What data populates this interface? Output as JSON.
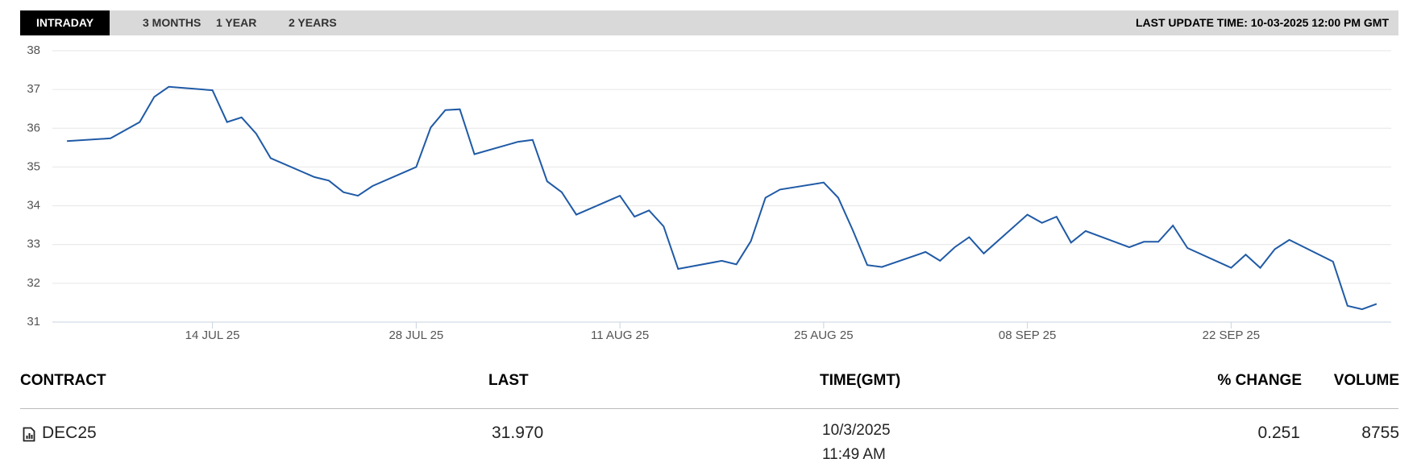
{
  "tabs": [
    "INTRADAY",
    "3 MONTHS",
    "1 YEAR",
    "2 YEARS"
  ],
  "last_update": "LAST UPDATE TIME: 10-03-2025 12:00 PM GMT",
  "chart_data": {
    "type": "line",
    "color": "#1f5aa6",
    "grid": true,
    "x": [
      "2025-07-04",
      "2025-07-07",
      "2025-07-09",
      "2025-07-10",
      "2025-07-11",
      "2025-07-14",
      "2025-07-15",
      "2025-07-16",
      "2025-07-17",
      "2025-07-18",
      "2025-07-21",
      "2025-07-22",
      "2025-07-23",
      "2025-07-24",
      "2025-07-25",
      "2025-07-28",
      "2025-07-29",
      "2025-07-30",
      "2025-07-31",
      "2025-08-01",
      "2025-08-04",
      "2025-08-05",
      "2025-08-06",
      "2025-08-07",
      "2025-08-08",
      "2025-08-11",
      "2025-08-12",
      "2025-08-13",
      "2025-08-14",
      "2025-08-15",
      "2025-08-18",
      "2025-08-19",
      "2025-08-20",
      "2025-08-21",
      "2025-08-22",
      "2025-08-25",
      "2025-08-26",
      "2025-08-27",
      "2025-08-28",
      "2025-08-29",
      "2025-09-01",
      "2025-09-02",
      "2025-09-03",
      "2025-09-04",
      "2025-09-05",
      "2025-09-08",
      "2025-09-09",
      "2025-09-10",
      "2025-09-11",
      "2025-09-12",
      "2025-09-15",
      "2025-09-16",
      "2025-09-17",
      "2025-09-18",
      "2025-09-19",
      "2025-09-22",
      "2025-09-23",
      "2025-09-24",
      "2025-09-25",
      "2025-09-26",
      "2025-09-29",
      "2025-09-30",
      "2025-10-01",
      "2025-10-02"
    ],
    "values": [
      35.67,
      35.74,
      36.16,
      36.81,
      37.07,
      36.98,
      36.16,
      36.28,
      35.86,
      35.23,
      34.74,
      34.65,
      34.35,
      34.26,
      34.51,
      35.0,
      36.02,
      36.47,
      36.49,
      35.33,
      35.65,
      35.7,
      34.63,
      34.35,
      33.77,
      34.26,
      33.72,
      33.88,
      33.47,
      32.37,
      32.58,
      32.49,
      33.09,
      34.21,
      34.42,
      34.6,
      34.21,
      33.37,
      32.47,
      32.42,
      32.81,
      32.58,
      32.93,
      33.19,
      32.77,
      33.77,
      33.56,
      33.72,
      33.05,
      33.35,
      32.93,
      33.07,
      33.07,
      33.49,
      32.91,
      32.4,
      32.74,
      32.4,
      32.88,
      33.12,
      32.56,
      31.42,
      31.33,
      31.47
    ],
    "xlim": [
      "2025-07-03",
      "2025-10-03"
    ],
    "xticks": [
      {
        "value": "2025-07-14",
        "label": "14 JUL 25"
      },
      {
        "value": "2025-07-28",
        "label": "28 JUL 25"
      },
      {
        "value": "2025-08-11",
        "label": "11 AUG 25"
      },
      {
        "value": "2025-08-25",
        "label": "25 AUG 25"
      },
      {
        "value": "2025-09-08",
        "label": "08 SEP 25"
      },
      {
        "value": "2025-09-22",
        "label": "22 SEP 25"
      }
    ],
    "ylim": [
      31,
      38
    ],
    "yticks": [
      31,
      32,
      33,
      34,
      35,
      36,
      37,
      38
    ]
  },
  "table": {
    "headers": [
      "CONTRACT",
      "LAST",
      "TIME(GMT)",
      "% CHANGE",
      "VOLUME"
    ],
    "rows": [
      [
        "DEC25",
        "31.970",
        "10/3/2025 11:49 AM",
        "0.251",
        "8755"
      ]
    ]
  }
}
